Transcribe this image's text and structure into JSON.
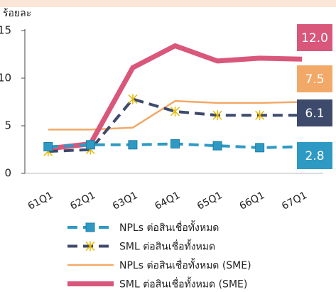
{
  "chart_data": {
    "type": "line",
    "y_label": "ร้อยละ",
    "categories": [
      "61Q1",
      "62Q1",
      "63Q1",
      "64Q1",
      "65Q1",
      "66Q1",
      "67Q1"
    ],
    "ylim": [
      0,
      15
    ],
    "yticks": [
      0,
      5,
      10,
      15
    ],
    "grid": false,
    "series": [
      {
        "name": "NPLs ต่อสินเชื่อทั้งหมด",
        "color": "#2e9ac4",
        "dash": true,
        "marker": "square",
        "width": 4,
        "values": [
          2.8,
          3.0,
          3.0,
          3.1,
          2.9,
          2.7,
          2.8
        ],
        "value_labels": [
          null,
          null,
          null,
          null,
          null,
          null,
          "2.8"
        ]
      },
      {
        "name": "SML ต่อสินเชื่อทั้งหมด",
        "color": "#3d4a6b",
        "dash": true,
        "marker": "star",
        "width": 4,
        "values": [
          2.3,
          2.5,
          7.8,
          6.5,
          6.1,
          6.1,
          6.1
        ],
        "value_labels": [
          null,
          null,
          null,
          null,
          null,
          null,
          "6.1"
        ]
      },
      {
        "name": "NPLs ต่อสินเชื่อทั้งหมด (SME)",
        "color": "#f2a968",
        "dash": false,
        "marker": "none",
        "width": 2.5,
        "values": [
          4.6,
          4.6,
          4.8,
          7.6,
          7.4,
          7.4,
          7.5
        ],
        "value_labels": [
          null,
          null,
          null,
          null,
          null,
          null,
          "7.5"
        ]
      },
      {
        "name": "SML ต่อสินเชื่อทั้งหมด (SME)",
        "color": "#d9577a",
        "dash": false,
        "marker": "none",
        "width": 7,
        "values": [
          2.6,
          3.1,
          11.1,
          13.4,
          11.8,
          12.1,
          12.0
        ],
        "value_labels": [
          null,
          null,
          null,
          null,
          null,
          null,
          "12.0"
        ]
      }
    ]
  }
}
